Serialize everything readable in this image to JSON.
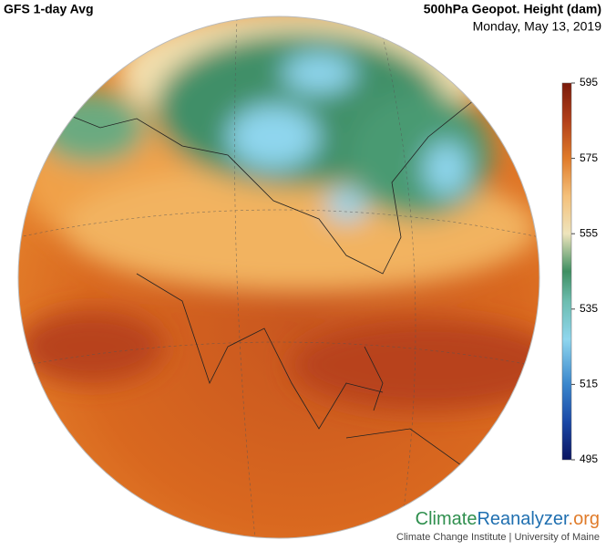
{
  "header": {
    "title": "GFS 1-day Avg",
    "variable": "500hPa Geopot. Height (dam)",
    "date": "Monday, May 13, 2019"
  },
  "colorbar": {
    "range": [
      495,
      595
    ],
    "ticks": [
      595,
      575,
      555,
      535,
      515,
      495
    ]
  },
  "footer": {
    "brand_climate": "Climate",
    "brand_reanalyzer": "Reanalyzer",
    "brand_org": ".org",
    "credit": "Climate Change Institute | University of Maine"
  }
}
